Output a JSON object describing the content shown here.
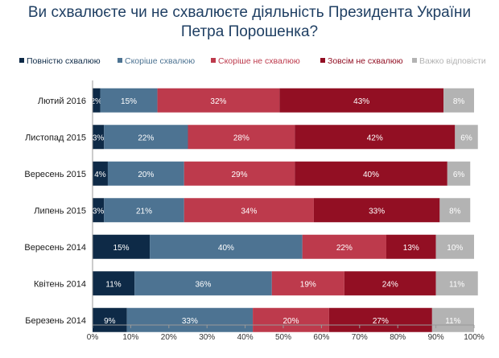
{
  "title_line1": "Ви схвалюєте чи не схвалюєте діяльність Президента України",
  "title_line2": "Петра Порошенка?",
  "chart_data": {
    "type": "bar",
    "orientation": "horizontal",
    "stacked": true,
    "categories": [
      "Лютий 2016",
      "Листопад 2015",
      "Вересень 2015",
      "Липень 2015",
      "Вересень 2014",
      "Квітень 2014",
      "Березень 2014"
    ],
    "series": [
      {
        "name": "Повністю схвалюю",
        "color": "#0e2a47",
        "values": [
          2,
          3,
          4,
          3,
          15,
          11,
          9
        ]
      },
      {
        "name": "Скоріше схвалюю",
        "color": "#4d7392",
        "values": [
          15,
          22,
          20,
          21,
          40,
          36,
          33
        ]
      },
      {
        "name": "Скоріше не схвалюю",
        "color": "#bd3a4c",
        "values": [
          32,
          28,
          29,
          34,
          22,
          19,
          20
        ]
      },
      {
        "name": "Зовсім не схвалюю",
        "color": "#920f23",
        "values": [
          43,
          42,
          40,
          33,
          13,
          24,
          27
        ]
      },
      {
        "name": "Важко відповісти",
        "color": "#b3b3b3",
        "values": [
          8,
          6,
          6,
          8,
          10,
          11,
          11
        ]
      }
    ],
    "xlim": [
      0,
      100
    ],
    "x_ticks": [
      "0%",
      "10%",
      "20%",
      "30%",
      "40%",
      "50%",
      "60%",
      "70%",
      "80%",
      "90%",
      "100%"
    ],
    "legend_position": "top",
    "grid": false
  }
}
